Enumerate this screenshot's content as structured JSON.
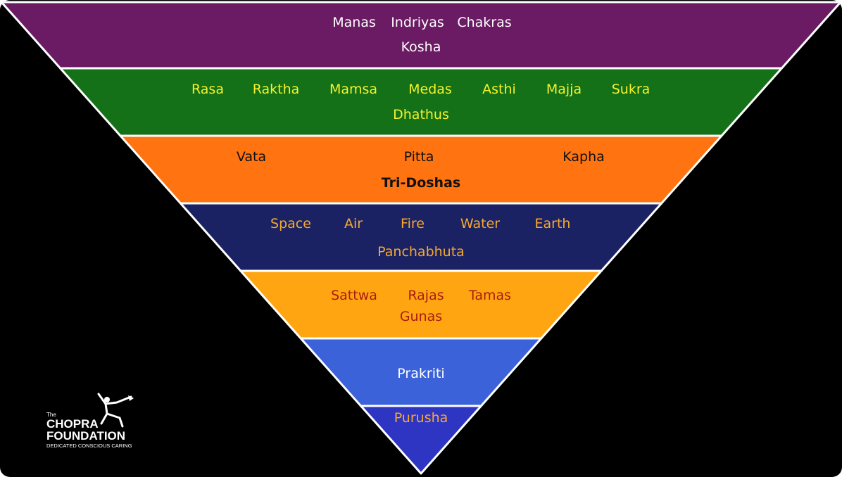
{
  "diagram": {
    "tiers": [
      {
        "items": [
          "Manas",
          "Indriyas",
          "Chakras"
        ],
        "title": "Kosha",
        "fill": "#6a1b63",
        "item_color": "#ffffff",
        "title_color": "#ffffff"
      },
      {
        "items": [
          "Rasa",
          "Raktha",
          "Mamsa",
          "Medas",
          "Asthi",
          "Majja",
          "Sukra"
        ],
        "title": "Dhathus",
        "fill": "#157117",
        "item_color": "#f2f22e",
        "title_color": "#f2f22e"
      },
      {
        "items": [
          "Vata",
          "Pitta",
          "Kapha"
        ],
        "title": "Tri-Doshas",
        "fill": "#ff7411",
        "item_color": "#111111",
        "title_color": "#111111"
      },
      {
        "items": [
          "Space",
          "Air",
          "Fire",
          "Water",
          "Earth"
        ],
        "title": "Panchabhuta",
        "fill": "#1a2263",
        "item_color": "#f7a830",
        "title_color": "#f7a830"
      },
      {
        "items": [
          "Sattwa",
          "Rajas",
          "Tamas"
        ],
        "title": "Gunas",
        "fill": "#ffa511",
        "item_color": "#a81d10",
        "title_color": "#a81d10"
      },
      {
        "items": [],
        "title": "Prakriti",
        "fill": "#3b62d9",
        "item_color": "#ffffff",
        "title_color": "#ffffff"
      },
      {
        "items": [],
        "title": "Purusha",
        "fill": "#2e35c2",
        "item_color": "#f7a830",
        "title_color": "#f7a830"
      }
    ]
  },
  "logo": {
    "the": "The",
    "line1": "CHOPRA",
    "line2": "FOUNDATION",
    "tagline": "DEDICATED CONSCIOUS CARING",
    "icon": "dancing-figure-icon"
  },
  "colors": {
    "background": "#000000",
    "separator": "#ffffff"
  }
}
